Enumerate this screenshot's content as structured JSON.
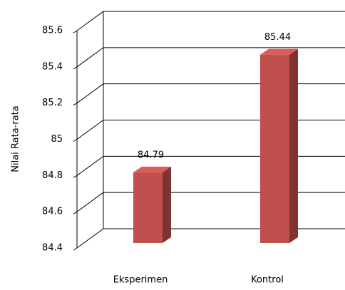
{
  "chart_data": {
    "type": "bar3d",
    "y_label": "Nilai Rata-rata",
    "categories": [
      "Eksperimen",
      "Kontrol"
    ],
    "values": [
      84.79,
      85.44
    ],
    "color": "#c0504d",
    "ylim": [
      84.4,
      85.6
    ],
    "yticks": [
      84.4,
      84.6,
      84.8,
      85,
      85.2,
      85.4,
      85.6
    ],
    "grid": true
  }
}
